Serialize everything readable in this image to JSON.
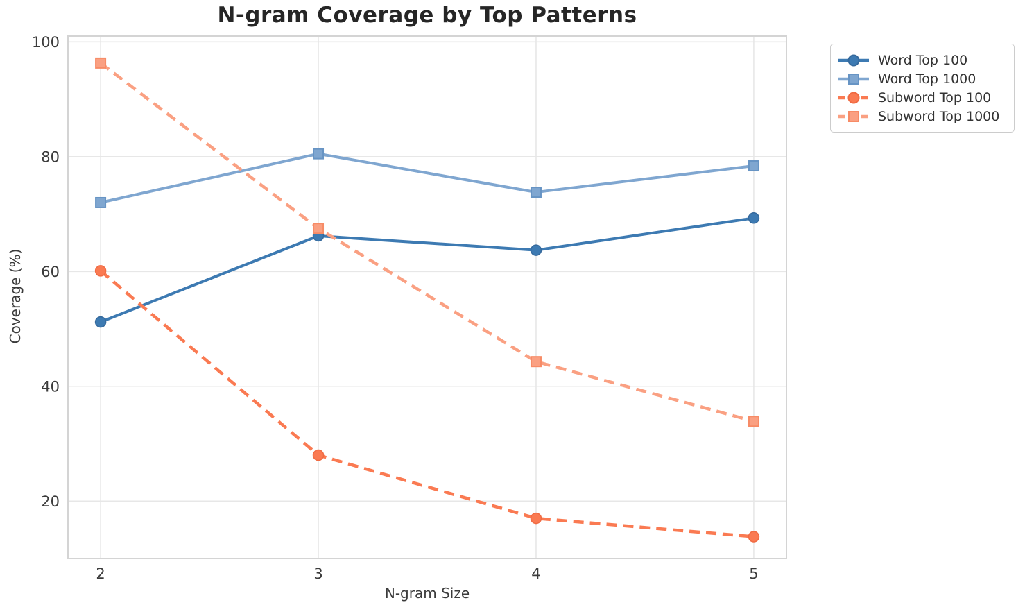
{
  "chart_data": {
    "type": "line",
    "title": "N-gram Coverage by Top Patterns",
    "xlabel": "N-gram Size",
    "ylabel": "Coverage (%)",
    "x": [
      2,
      3,
      4,
      5
    ],
    "xticks": [
      "2",
      "3",
      "4",
      "5"
    ],
    "yticks": [
      20,
      40,
      60,
      80,
      100
    ],
    "xlim": [
      1.85,
      5.15
    ],
    "ylim": [
      10,
      101
    ],
    "grid": true,
    "legend_position": "outside-top-right",
    "series": [
      {
        "name": "Word Top 100",
        "color": "#3d7ab2",
        "marker_edge": "#35699c",
        "line_style": "solid",
        "marker": "circle",
        "values": [
          51.2,
          66.2,
          63.7,
          69.3
        ]
      },
      {
        "name": "Word Top 1000",
        "color": "#7fa6d0",
        "marker_edge": "#6794c4",
        "line_style": "solid",
        "marker": "square",
        "values": [
          72.0,
          80.5,
          73.8,
          78.4
        ]
      },
      {
        "name": "Subword Top 100",
        "color": "#fa7a52",
        "marker_edge": "#f06a42",
        "line_style": "dashed",
        "marker": "circle",
        "values": [
          60.1,
          28.0,
          17.0,
          13.8
        ]
      },
      {
        "name": "Subword Top 1000",
        "color": "#faa082",
        "marker_edge": "#f78b66",
        "line_style": "dashed",
        "marker": "square",
        "values": [
          96.3,
          67.5,
          44.3,
          33.9
        ]
      }
    ],
    "style": {
      "grid_color": "#e7e7e7",
      "spine_color": "#d4d4d4",
      "tick_label_color": "#3b3b3b",
      "title_color": "#262626",
      "background": "#ffffff"
    }
  }
}
